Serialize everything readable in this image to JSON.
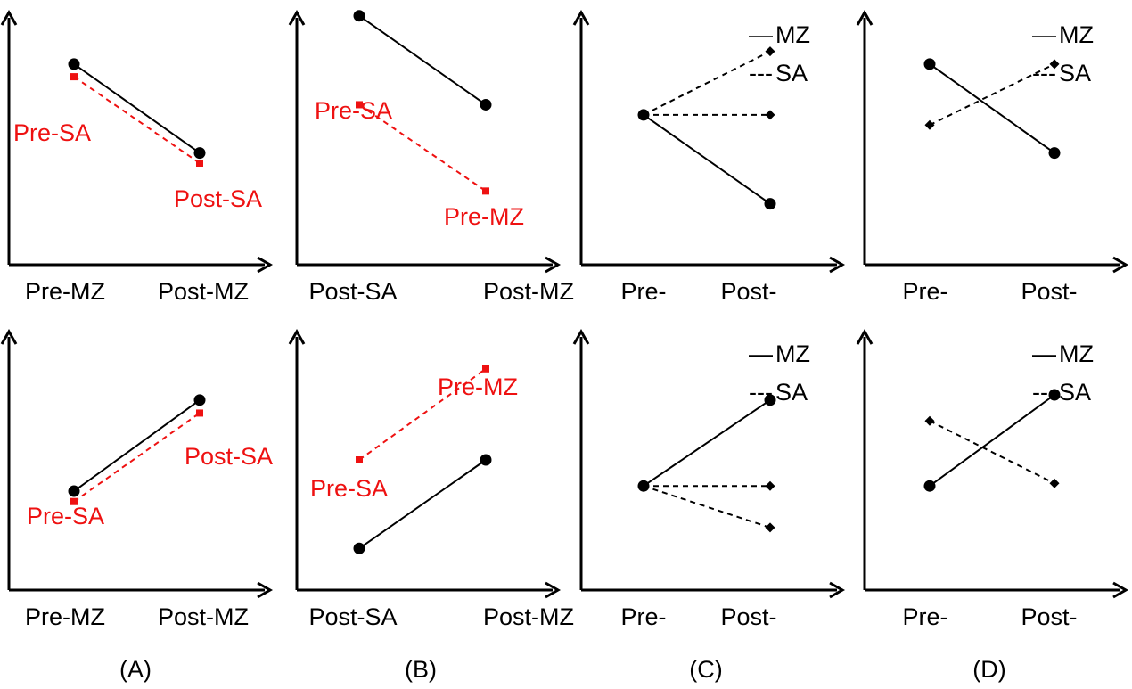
{
  "panel_labels": [
    "(A)",
    "(B)",
    "(C)",
    "(D)"
  ],
  "legend": {
    "solid": "MZ",
    "dashed": "SA",
    "solid_glyph": "—",
    "dashed_glyph": "---"
  },
  "colors": {
    "black": "#000000",
    "red": "#ee1111"
  },
  "panels": [
    {
      "id": "A-top",
      "x_labels": [
        "Pre-MZ",
        "Post-MZ"
      ],
      "legend": false,
      "lines": [
        {
          "style": "solid",
          "color": "black",
          "marker": "circle",
          "from": [
            0,
            0.79
          ],
          "to": [
            1,
            0.44
          ]
        },
        {
          "style": "dashed",
          "color": "red",
          "marker": "square",
          "from": [
            0,
            0.74
          ],
          "to": [
            1,
            0.4
          ]
        }
      ],
      "texts": [
        {
          "value": "Pre-SA",
          "color": "red",
          "near": "left"
        },
        {
          "value": "Post-SA",
          "color": "red",
          "near": "right"
        }
      ]
    },
    {
      "id": "B-top",
      "x_labels": [
        "Post-SA",
        "Post-MZ"
      ],
      "legend": false,
      "lines": [
        {
          "style": "solid",
          "color": "black",
          "marker": "circle",
          "from": [
            0,
            0.98
          ],
          "to": [
            1,
            0.63
          ]
        },
        {
          "style": "dashed",
          "color": "red",
          "marker": "square",
          "from": [
            0,
            0.63
          ],
          "to": [
            1,
            0.29
          ]
        }
      ],
      "texts": [
        {
          "value": "Pre-SA",
          "color": "red",
          "near": "left"
        },
        {
          "value": "Pre-MZ",
          "color": "red",
          "near": "right"
        }
      ]
    },
    {
      "id": "C-top",
      "x_labels": [
        "Pre-",
        "Post-"
      ],
      "legend": true,
      "lines": [
        {
          "style": "dashed",
          "color": "black",
          "marker": "diamond",
          "from": [
            0,
            0.59
          ],
          "to": [
            1,
            0.84
          ]
        },
        {
          "style": "dashed",
          "color": "black",
          "marker": "diamond",
          "from": [
            0,
            0.59
          ],
          "to": [
            1,
            0.59
          ]
        },
        {
          "style": "solid",
          "color": "black",
          "marker": "circle",
          "from": [
            0,
            0.59
          ],
          "to": [
            1,
            0.24
          ]
        }
      ]
    },
    {
      "id": "D-top",
      "x_labels": [
        "Pre-",
        "Post-"
      ],
      "legend": true,
      "lines": [
        {
          "style": "solid",
          "color": "black",
          "marker": "circle",
          "from": [
            0,
            0.79
          ],
          "to": [
            1,
            0.44
          ]
        },
        {
          "style": "dashed",
          "color": "black",
          "marker": "diamond",
          "from": [
            0,
            0.55
          ],
          "to": [
            1,
            0.79
          ]
        }
      ]
    },
    {
      "id": "A-bottom",
      "x_labels": [
        "Pre-MZ",
        "Post-MZ"
      ],
      "legend": false,
      "lines": [
        {
          "style": "solid",
          "color": "black",
          "marker": "circle",
          "from": [
            0,
            0.38
          ],
          "to": [
            1,
            0.73
          ]
        },
        {
          "style": "dashed",
          "color": "red",
          "marker": "square",
          "from": [
            0,
            0.34
          ],
          "to": [
            1,
            0.68
          ]
        }
      ],
      "texts": [
        {
          "value": "Pre-SA",
          "color": "red",
          "near": "left"
        },
        {
          "value": "Post-SA",
          "color": "red",
          "near": "right"
        }
      ]
    },
    {
      "id": "B-bottom",
      "x_labels": [
        "Post-SA",
        "Post-MZ"
      ],
      "legend": false,
      "lines": [
        {
          "style": "dashed",
          "color": "red",
          "marker": "square",
          "from": [
            0,
            0.5
          ],
          "to": [
            1,
            0.85
          ]
        },
        {
          "style": "solid",
          "color": "black",
          "marker": "circle",
          "from": [
            0,
            0.16
          ],
          "to": [
            1,
            0.5
          ]
        }
      ],
      "texts": [
        {
          "value": "Pre-SA",
          "color": "red",
          "near": "left"
        },
        {
          "value": "Pre-MZ",
          "color": "red",
          "near": "right"
        }
      ]
    },
    {
      "id": "C-bottom",
      "x_labels": [
        "Pre-",
        "Post-"
      ],
      "legend": true,
      "lines": [
        {
          "style": "solid",
          "color": "black",
          "marker": "circle",
          "from": [
            0,
            0.4
          ],
          "to": [
            1,
            0.73
          ]
        },
        {
          "style": "dashed",
          "color": "black",
          "marker": "diamond",
          "from": [
            0,
            0.4
          ],
          "to": [
            1,
            0.4
          ]
        },
        {
          "style": "dashed",
          "color": "black",
          "marker": "diamond",
          "from": [
            0,
            0.4
          ],
          "to": [
            1,
            0.24
          ]
        }
      ]
    },
    {
      "id": "D-bottom",
      "x_labels": [
        "Pre-",
        "Post-"
      ],
      "legend": true,
      "lines": [
        {
          "style": "dashed",
          "color": "black",
          "marker": "diamond",
          "from": [
            0,
            0.65
          ],
          "to": [
            1,
            0.41
          ]
        },
        {
          "style": "solid",
          "color": "black",
          "marker": "circle",
          "from": [
            0,
            0.4
          ],
          "to": [
            1,
            0.75
          ]
        }
      ]
    }
  ]
}
